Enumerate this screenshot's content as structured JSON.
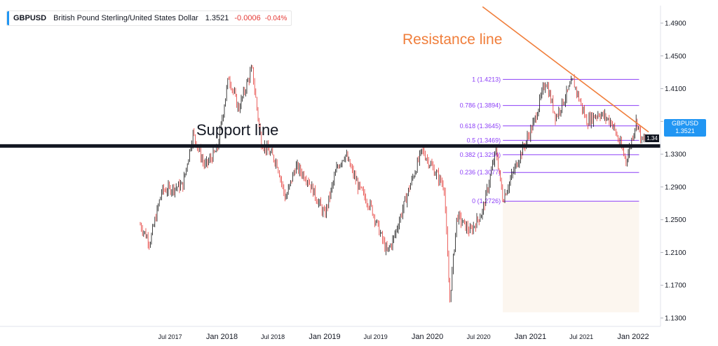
{
  "header": {
    "symbol": "GBPUSD",
    "description": "British Pound Sterling/United States Dollar",
    "last": "1.3521",
    "change": "-0.0006",
    "change_pct": "-0.04%",
    "accent_color": "#2196f3"
  },
  "price_tag": {
    "symbol": "GBPUSD",
    "value": "1.3521"
  },
  "support_tag": "1.34",
  "annotations": {
    "resistance": "Resistance line",
    "support": "Support line",
    "resistance_color": "#f07e3b",
    "support_color": "#131722"
  },
  "chart_data": {
    "type": "candlestick",
    "title": "",
    "xlabel": "",
    "ylabel": "",
    "ylim": [
      1.125,
      1.515
    ],
    "x_ticks": [
      "Jul 2017",
      "Jan 2018",
      "Jul 2018",
      "Jan 2019",
      "Jul 2019",
      "Jan 2020",
      "Jul 2020",
      "Jan 2021",
      "Jul 2021",
      "Jan 2022"
    ],
    "y_ticks": [
      "1.4900",
      "1.4500",
      "1.4100",
      "1.3700",
      "1.3300",
      "1.2900",
      "1.2500",
      "1.2100",
      "1.1700",
      "1.1300"
    ],
    "series": [
      {
        "values": [
          {
            "x": "2017-03-15",
            "y": 1.245
          },
          {
            "x": "2017-04-20",
            "y": 1.222
          },
          {
            "x": "2017-06-01",
            "y": 1.285
          },
          {
            "x": "2017-08-15",
            "y": 1.292
          },
          {
            "x": "2017-09-20",
            "y": 1.355
          },
          {
            "x": "2017-11-01",
            "y": 1.315
          },
          {
            "x": "2017-12-15",
            "y": 1.335
          },
          {
            "x": "2018-01-25",
            "y": 1.425
          },
          {
            "x": "2018-03-01",
            "y": 1.385
          },
          {
            "x": "2018-04-18",
            "y": 1.435
          },
          {
            "x": "2018-05-20",
            "y": 1.345
          },
          {
            "x": "2018-07-15",
            "y": 1.32
          },
          {
            "x": "2018-08-15",
            "y": 1.275
          },
          {
            "x": "2018-09-20",
            "y": 1.315
          },
          {
            "x": "2018-11-01",
            "y": 1.3
          },
          {
            "x": "2019-01-01",
            "y": 1.255
          },
          {
            "x": "2019-02-15",
            "y": 1.315
          },
          {
            "x": "2019-03-15",
            "y": 1.33
          },
          {
            "x": "2019-05-01",
            "y": 1.29
          },
          {
            "x": "2019-06-15",
            "y": 1.265
          },
          {
            "x": "2019-08-10",
            "y": 1.21
          },
          {
            "x": "2019-09-01",
            "y": 1.225
          },
          {
            "x": "2019-10-25",
            "y": 1.285
          },
          {
            "x": "2019-12-13",
            "y": 1.335
          },
          {
            "x": "2020-01-25",
            "y": 1.31
          },
          {
            "x": "2020-03-01",
            "y": 1.29
          },
          {
            "x": "2020-03-20",
            "y": 1.15
          },
          {
            "x": "2020-04-15",
            "y": 1.255
          },
          {
            "x": "2020-06-01",
            "y": 1.235
          },
          {
            "x": "2020-07-15",
            "y": 1.26
          },
          {
            "x": "2020-09-01",
            "y": 1.335
          },
          {
            "x": "2020-09-25",
            "y": 1.275
          },
          {
            "x": "2020-11-15",
            "y": 1.32
          },
          {
            "x": "2021-01-15",
            "y": 1.37
          },
          {
            "x": "2021-02-24",
            "y": 1.42
          },
          {
            "x": "2021-04-01",
            "y": 1.375
          },
          {
            "x": "2021-06-01",
            "y": 1.42
          },
          {
            "x": "2021-07-20",
            "y": 1.37
          },
          {
            "x": "2021-09-01",
            "y": 1.38
          },
          {
            "x": "2021-10-15",
            "y": 1.37
          },
          {
            "x": "2021-12-08",
            "y": 1.322
          },
          {
            "x": "2022-01-13",
            "y": 1.372
          },
          {
            "x": "2022-02-01",
            "y": 1.345
          },
          {
            "x": "2022-02-20",
            "y": 1.3521
          }
        ]
      }
    ],
    "fib_levels": [
      {
        "label": "1 (1.4213)",
        "value": 1.4213
      },
      {
        "label": "0.786 (1.3894)",
        "value": 1.3894
      },
      {
        "label": "0.618 (1.3645)",
        "value": 1.3645
      },
      {
        "label": "0.5 (1.3469)",
        "value": 1.3469
      },
      {
        "label": "0.382 (1.3294)",
        "value": 1.3294
      },
      {
        "label": "0.236 (1.3077)",
        "value": 1.3077
      },
      {
        "label": "0 (1.2726)",
        "value": 1.2726
      }
    ],
    "fib_color": "#8c3ff7",
    "fib_zone": {
      "x_start": "2020-09-25",
      "x_end": "2022-01-22",
      "y_bottom": 1.137
    },
    "support_line": {
      "value": 1.34
    },
    "resistance_line": {
      "start": {
        "x": "2020-07-15",
        "y": 1.51
      },
      "end": {
        "x": "2022-02-25",
        "y": 1.357
      }
    },
    "candle_up_color": "#111111",
    "candle_down_color": "#e53935",
    "grid": false,
    "legend": "top-left"
  }
}
